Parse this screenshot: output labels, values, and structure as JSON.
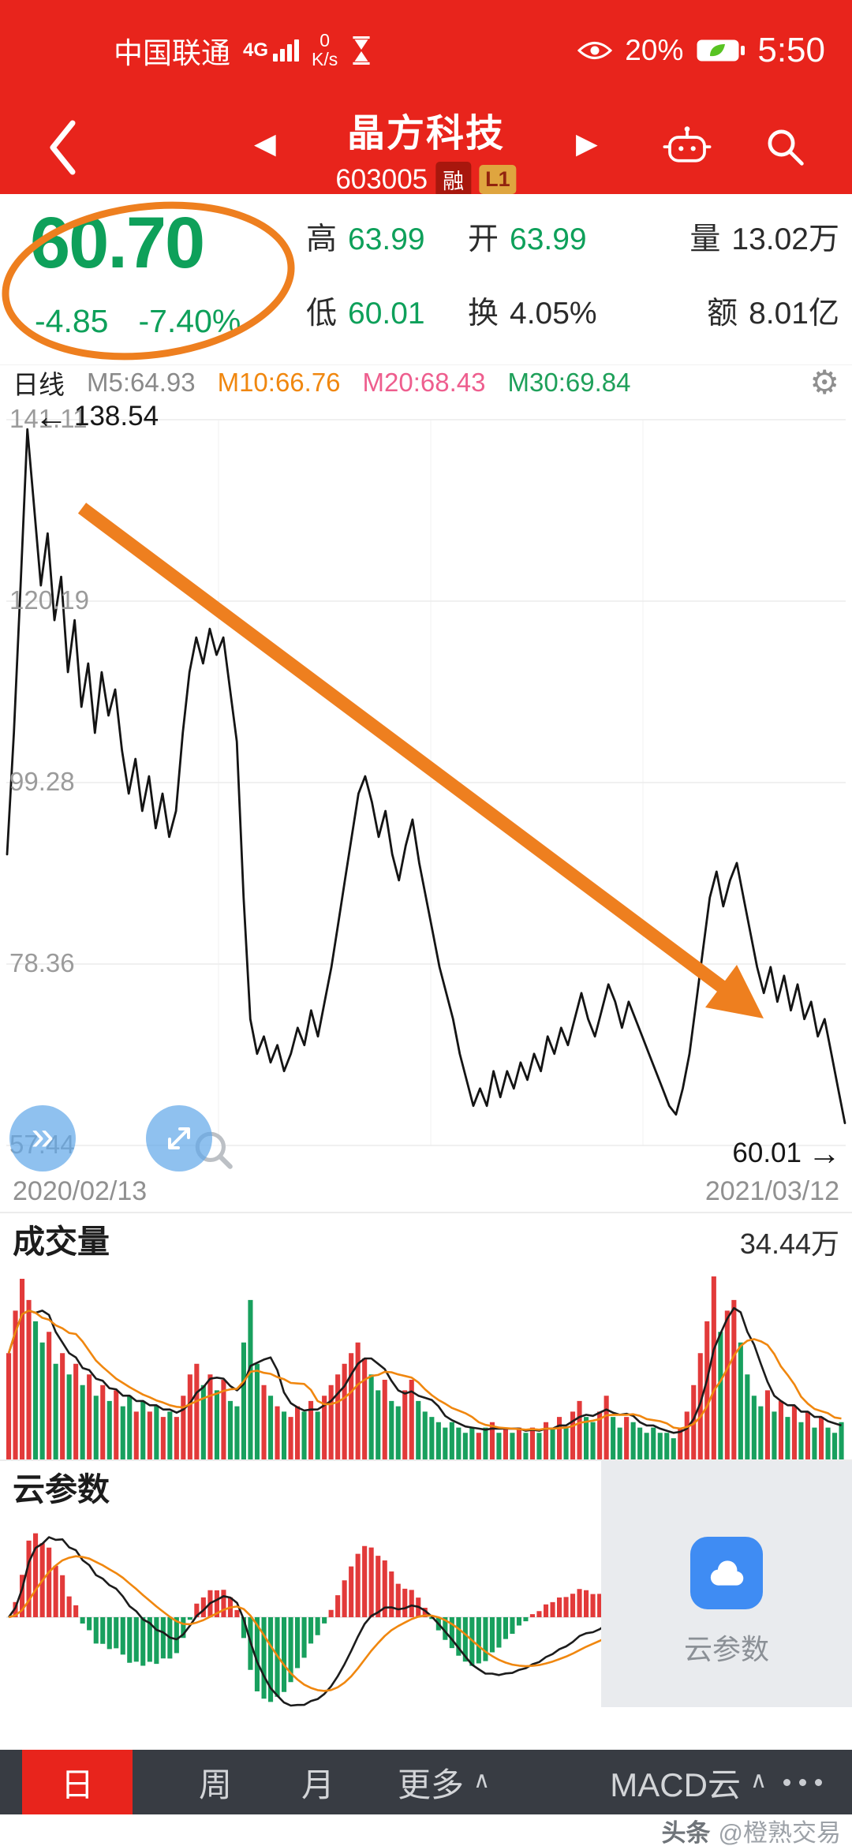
{
  "colors": {
    "app_red": "#e8241c",
    "down_green": "#0ea05a",
    "up_red": "#e23a3a",
    "annotation_orange": "#ee7f1f",
    "ma10_orange": "#f0870f",
    "ma20_pink": "#ee5e8e",
    "ma30_green": "#1fa05a",
    "cloud_blue": "#3f8cf3"
  },
  "icons": {
    "gear": "⚙",
    "pan": "»",
    "left_arrow": "←",
    "right_arrow": "→",
    "caret": "∧",
    "prev": "◀",
    "next": "▶"
  },
  "status_bar": {
    "carrier": "中国联通",
    "network": "4G",
    "speed_top": "0",
    "speed_bottom": "K/s",
    "eye_pct": "20%",
    "time": "5:50"
  },
  "header": {
    "title": "晶方科技",
    "code": "603005",
    "badge_margin": "融",
    "badge_level": "L1"
  },
  "quote": {
    "price": "60.70",
    "change": "-4.85",
    "change_pct": "-7.40%",
    "fields": [
      {
        "label": "高",
        "value": "63.99"
      },
      {
        "label": "开",
        "value": "63.99"
      },
      {
        "label": "量",
        "value": "13.02万"
      },
      {
        "label": "低",
        "value": "60.01"
      },
      {
        "label": "换",
        "value": "4.05%"
      },
      {
        "label": "额",
        "value": "8.01亿"
      }
    ]
  },
  "indicator_bar": {
    "period": "日线",
    "ma5": "M5:64.93",
    "ma10": "M10:66.76",
    "ma20": "M20:68.43",
    "ma30": "M30:69.84"
  },
  "main_chart": {
    "left_price": "138.54",
    "last_price": "60.01",
    "date_start": "2020/02/13",
    "date_end": "2021/03/12"
  },
  "volume_panel": {
    "title": "成交量",
    "max_label": "34.44万"
  },
  "macd_panel": {
    "title": "云参数",
    "overlay_label": "云参数"
  },
  "bottom_bar": {
    "tabs": [
      {
        "label": "日",
        "active": true
      },
      {
        "label": "周",
        "active": false
      },
      {
        "label": "月",
        "active": false
      },
      {
        "label": "更多",
        "active": false,
        "caret": true
      },
      {
        "label": "MACD云",
        "active": false,
        "caret": true
      }
    ]
  },
  "watermark": {
    "brand": "头条",
    "handle": "@橙熟交易"
  },
  "chart_data": {
    "type": "line",
    "title": "晶方科技 603005 日线",
    "x_range": [
      "2020/02/13",
      "2021/03/12"
    ],
    "y_ticks": [
      141.11,
      120.19,
      99.28,
      78.36,
      57.44
    ],
    "ylim": [
      55.0,
      143.5
    ],
    "grid": true,
    "first_visible_price": 138.54,
    "last_price": 60.01,
    "close": [
      91,
      105,
      122,
      140,
      131,
      122,
      128,
      118,
      123,
      112,
      118,
      108,
      113,
      105,
      112,
      107,
      110,
      103,
      98,
      102,
      96,
      100,
      94,
      98,
      93,
      96,
      105,
      112,
      116,
      113,
      117,
      114,
      116,
      110,
      104,
      86,
      72,
      68,
      70,
      67,
      69,
      66,
      68,
      71,
      69,
      73,
      70,
      74,
      78,
      83,
      88,
      93,
      98,
      100,
      97,
      93,
      96,
      91,
      88,
      92,
      95,
      90,
      86,
      82,
      78,
      75,
      72,
      68,
      65,
      62,
      64,
      62,
      66,
      63,
      66,
      64,
      67,
      65,
      68,
      66,
      70,
      68,
      71,
      69,
      72,
      75,
      72,
      70,
      73,
      76,
      74,
      71,
      74,
      72,
      70,
      68,
      66,
      64,
      62,
      61,
      64,
      68,
      74,
      80,
      86,
      89,
      85,
      88,
      90,
      86,
      82,
      78,
      75,
      78,
      74,
      77,
      73,
      76,
      72,
      74,
      70,
      72,
      68,
      64,
      60.01
    ],
    "volume_wan": [
      20,
      28,
      34,
      30,
      26,
      22,
      24,
      18,
      20,
      16,
      18,
      14,
      16,
      12,
      14,
      11,
      13,
      10,
      12,
      9,
      11,
      9,
      10,
      8,
      9,
      8,
      12,
      16,
      18,
      14,
      16,
      13,
      15,
      11,
      10,
      22,
      30,
      18,
      14,
      12,
      10,
      9,
      8,
      10,
      9,
      11,
      9,
      12,
      14,
      16,
      18,
      20,
      22,
      19,
      16,
      13,
      15,
      11,
      10,
      13,
      15,
      11,
      9,
      8,
      7,
      6,
      7,
      6,
      5,
      6,
      5,
      6,
      7,
      5,
      6,
      5,
      6,
      5,
      6,
      5,
      7,
      6,
      8,
      6,
      9,
      11,
      8,
      7,
      9,
      12,
      8,
      6,
      8,
      7,
      6,
      5,
      6,
      5,
      5,
      4,
      6,
      9,
      14,
      20,
      26,
      34.44,
      24,
      28,
      30,
      22,
      16,
      12,
      10,
      13,
      9,
      11,
      8,
      10,
      7,
      9,
      6,
      8,
      6,
      5,
      7
    ],
    "volume_max": 34.44,
    "indicators": {
      "volume_ma": [
        5,
        10
      ],
      "lower_panel": "云参数(MACD)"
    }
  }
}
